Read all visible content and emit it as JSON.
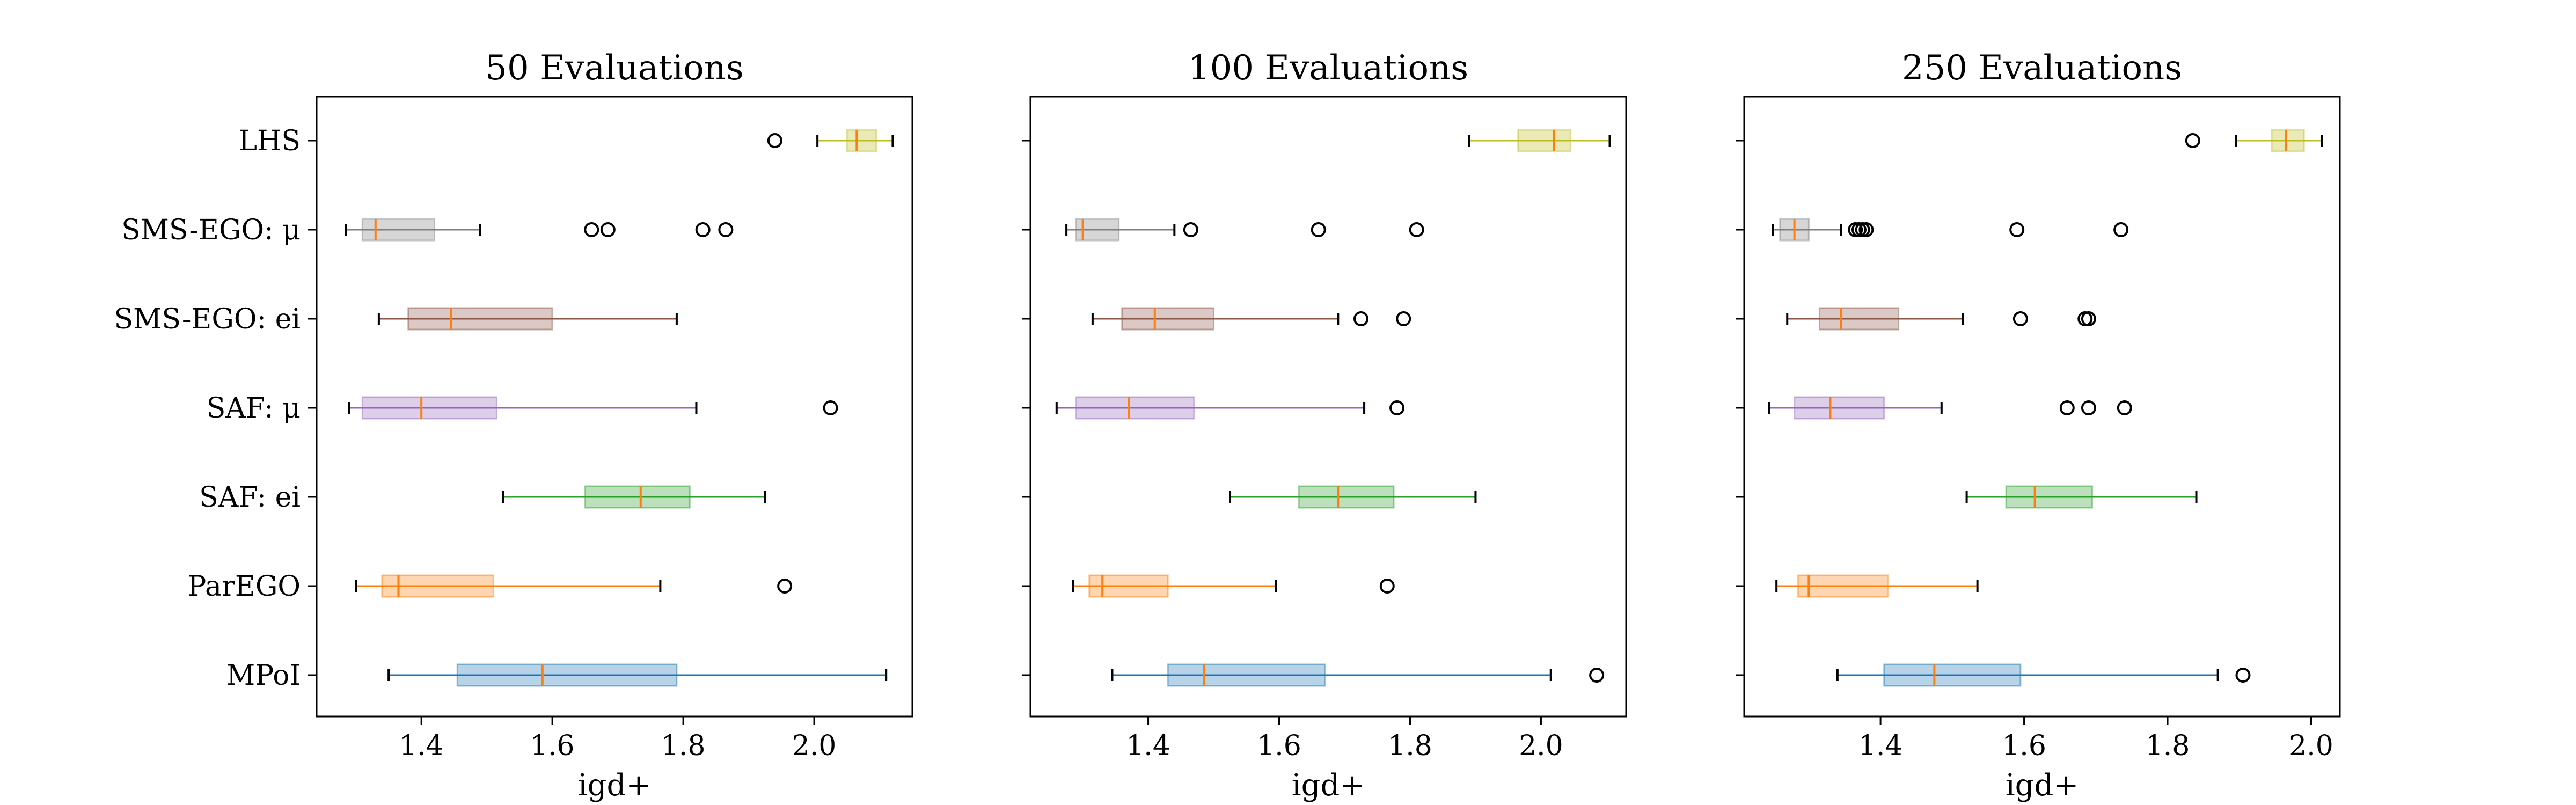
{
  "chart_data": [
    {
      "type": "boxplot",
      "orientation": "horizontal",
      "title": "50 Evaluations",
      "xlabel": "igd+",
      "xlim": [
        1.24,
        2.15
      ],
      "xticks": [
        1.4,
        1.6,
        1.8,
        2.0
      ],
      "categories": [
        "LHS",
        "SMS-EGO: μ",
        "SMS-EGO: ei",
        "SAF: μ",
        "SAF: ei",
        "ParEGO",
        "MPoI"
      ],
      "series": [
        {
          "name": "LHS",
          "color": "#bcbd22",
          "whisker_low": 2.005,
          "q1": 2.05,
          "median": 2.065,
          "q3": 2.095,
          "whisker_high": 2.12,
          "outliers": [
            1.94
          ]
        },
        {
          "name": "SMS-EGO: μ",
          "color": "#7f7f7f",
          "whisker_low": 1.285,
          "q1": 1.31,
          "median": 1.33,
          "q3": 1.42,
          "whisker_high": 1.49,
          "outliers": [
            1.66,
            1.685,
            1.83,
            1.865
          ]
        },
        {
          "name": "SMS-EGO: ei",
          "color": "#8c564b",
          "whisker_low": 1.335,
          "q1": 1.38,
          "median": 1.445,
          "q3": 1.6,
          "whisker_high": 1.79,
          "outliers": []
        },
        {
          "name": "SAF: μ",
          "color": "#9467bd",
          "whisker_low": 1.29,
          "q1": 1.31,
          "median": 1.4,
          "q3": 1.515,
          "whisker_high": 1.82,
          "outliers": [
            2.025
          ]
        },
        {
          "name": "SAF: ei",
          "color": "#2ca02c",
          "whisker_low": 1.525,
          "q1": 1.65,
          "median": 1.735,
          "q3": 1.81,
          "whisker_high": 1.925,
          "outliers": []
        },
        {
          "name": "ParEGO",
          "color": "#ff7f0e",
          "whisker_low": 1.3,
          "q1": 1.34,
          "median": 1.365,
          "q3": 1.51,
          "whisker_high": 1.765,
          "outliers": [
            1.955
          ]
        },
        {
          "name": "MPoI",
          "color": "#1f77b4",
          "whisker_low": 1.35,
          "q1": 1.455,
          "median": 1.585,
          "q3": 1.79,
          "whisker_high": 2.11,
          "outliers": []
        }
      ]
    },
    {
      "type": "boxplot",
      "orientation": "horizontal",
      "title": "100 Evaluations",
      "xlabel": "igd+",
      "xlim": [
        1.22,
        2.13
      ],
      "xticks": [
        1.4,
        1.6,
        1.8,
        2.0
      ],
      "categories": [
        "LHS",
        "SMS-EGO: μ",
        "SMS-EGO: ei",
        "SAF: μ",
        "SAF: ei",
        "ParEGO",
        "MPoI"
      ],
      "series": [
        {
          "name": "LHS",
          "color": "#bcbd22",
          "whisker_low": 1.89,
          "q1": 1.965,
          "median": 2.02,
          "q3": 2.045,
          "whisker_high": 2.105,
          "outliers": []
        },
        {
          "name": "SMS-EGO: μ",
          "color": "#7f7f7f",
          "whisker_low": 1.275,
          "q1": 1.29,
          "median": 1.3,
          "q3": 1.355,
          "whisker_high": 1.44,
          "outliers": [
            1.465,
            1.66,
            1.81
          ]
        },
        {
          "name": "SMS-EGO: ei",
          "color": "#8c564b",
          "whisker_low": 1.315,
          "q1": 1.36,
          "median": 1.41,
          "q3": 1.5,
          "whisker_high": 1.69,
          "outliers": [
            1.725,
            1.79
          ]
        },
        {
          "name": "SAF: μ",
          "color": "#9467bd",
          "whisker_low": 1.26,
          "q1": 1.29,
          "median": 1.37,
          "q3": 1.47,
          "whisker_high": 1.73,
          "outliers": [
            1.78
          ]
        },
        {
          "name": "SAF: ei",
          "color": "#2ca02c",
          "whisker_low": 1.525,
          "q1": 1.63,
          "median": 1.69,
          "q3": 1.775,
          "whisker_high": 1.9,
          "outliers": []
        },
        {
          "name": "ParEGO",
          "color": "#ff7f0e",
          "whisker_low": 1.285,
          "q1": 1.31,
          "median": 1.33,
          "q3": 1.43,
          "whisker_high": 1.595,
          "outliers": [
            1.765
          ]
        },
        {
          "name": "MPoI",
          "color": "#1f77b4",
          "whisker_low": 1.345,
          "q1": 1.43,
          "median": 1.485,
          "q3": 1.67,
          "whisker_high": 2.015,
          "outliers": [
            2.085
          ]
        }
      ]
    },
    {
      "type": "boxplot",
      "orientation": "horizontal",
      "title": "250 Evaluations",
      "xlabel": "igd+",
      "xlim": [
        1.21,
        2.04
      ],
      "xticks": [
        1.4,
        1.6,
        1.8,
        2.0
      ],
      "categories": [
        "LHS",
        "SMS-EGO: μ",
        "SMS-EGO: ei",
        "SAF: μ",
        "SAF: ei",
        "ParEGO",
        "MPoI"
      ],
      "series": [
        {
          "name": "LHS",
          "color": "#bcbd22",
          "whisker_low": 1.895,
          "q1": 1.945,
          "median": 1.965,
          "q3": 1.99,
          "whisker_high": 2.015,
          "outliers": [
            1.835
          ]
        },
        {
          "name": "SMS-EGO: μ",
          "color": "#7f7f7f",
          "whisker_low": 1.25,
          "q1": 1.26,
          "median": 1.28,
          "q3": 1.3,
          "whisker_high": 1.345,
          "outliers": [
            1.365,
            1.37,
            1.375,
            1.38,
            1.59,
            1.735
          ]
        },
        {
          "name": "SMS-EGO: ei",
          "color": "#8c564b",
          "whisker_low": 1.27,
          "q1": 1.315,
          "median": 1.345,
          "q3": 1.425,
          "whisker_high": 1.515,
          "outliers": [
            1.595,
            1.685,
            1.69
          ]
        },
        {
          "name": "SAF: μ",
          "color": "#9467bd",
          "whisker_low": 1.245,
          "q1": 1.28,
          "median": 1.33,
          "q3": 1.405,
          "whisker_high": 1.485,
          "outliers": [
            1.66,
            1.69,
            1.74
          ]
        },
        {
          "name": "SAF: ei",
          "color": "#2ca02c",
          "whisker_low": 1.52,
          "q1": 1.575,
          "median": 1.615,
          "q3": 1.695,
          "whisker_high": 1.84,
          "outliers": []
        },
        {
          "name": "ParEGO",
          "color": "#ff7f0e",
          "whisker_low": 1.255,
          "q1": 1.285,
          "median": 1.3,
          "q3": 1.41,
          "whisker_high": 1.535,
          "outliers": []
        },
        {
          "name": "MPoI",
          "color": "#1f77b4",
          "whisker_low": 1.34,
          "q1": 1.405,
          "median": 1.475,
          "q3": 1.595,
          "whisker_high": 1.87,
          "outliers": [
            1.905
          ]
        }
      ]
    }
  ]
}
